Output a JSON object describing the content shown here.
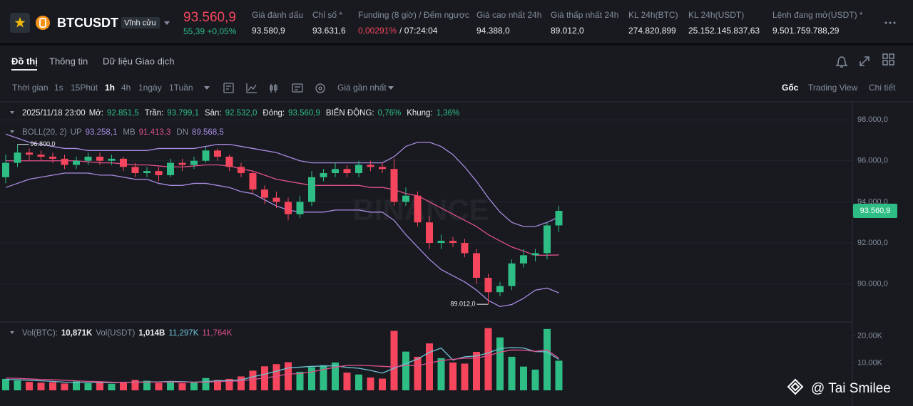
{
  "header": {
    "symbol": "BTCUSDT",
    "contract": "Vĩnh cửu",
    "price": "93.560,9",
    "change": "55,39 +0,05%",
    "stats": [
      {
        "label": "Giá đánh dấu",
        "value": "93.580,9"
      },
      {
        "label": "Chỉ số *",
        "value": "93.631,6"
      },
      {
        "label": "Funding (8 giờ) / Đếm ngược",
        "value": "0,00291%",
        "extra": "/ 07:24:04"
      },
      {
        "label": "Giá cao nhất 24h",
        "value": "94.388,0"
      },
      {
        "label": "Giá thấp nhất 24h",
        "value": "89.012,0"
      },
      {
        "label": "KL 24h(BTC)",
        "value": "274.820,899"
      },
      {
        "label": "KL 24h(USDT)",
        "value": "25.152.145.837,63"
      },
      {
        "label": "Lệnh đang mở(USDT) *",
        "value": "9.501.759.788,29"
      }
    ]
  },
  "tabs": [
    "Đồ thị",
    "Thông tin",
    "Dữ liệu Giao dịch"
  ],
  "toolbar": {
    "intervals": [
      "Thời gian",
      "1s",
      "15Phút",
      "1h",
      "4h",
      "1ngày",
      "1Tuần"
    ],
    "price_type": "Giá gần nhất",
    "views": [
      "Gốc",
      "Trading View",
      "Chi tiết"
    ]
  },
  "watermark": "BINANCE",
  "credit": "@ Tai Smilee",
  "chart_data": [
    {
      "type": "candlestick",
      "info": {
        "time": "2025/11/18 23:00",
        "items": [
          {
            "label": "Mở:",
            "value": "92.851,5"
          },
          {
            "label": "Trần:",
            "value": "93.799,1"
          },
          {
            "label": "Sàn:",
            "value": "92.532,0"
          },
          {
            "label": "Đóng:",
            "value": "93.560,9"
          },
          {
            "label": "BIẾN ĐỘNG:",
            "value": "0,76%"
          },
          {
            "label": "Khung:",
            "value": "1,36%"
          }
        ]
      },
      "indicator": "BOLL(20, 2)",
      "up_color": "#2ebd85",
      "down_color": "#f6465d",
      "open": [
        95200,
        95900,
        96400,
        96300,
        96200,
        96100,
        95800,
        96000,
        96200,
        96000,
        96100,
        95700,
        95400,
        95500,
        95300,
        95900,
        95800,
        96000,
        96500,
        96200,
        95700,
        95400,
        94600,
        94200,
        94000,
        93400,
        94000,
        95200,
        95400,
        95600,
        95400,
        95800,
        95700,
        95600,
        94000,
        94300,
        93000,
        92000,
        92100,
        92000,
        91500,
        90300,
        89600,
        89900,
        91000,
        91400,
        91500,
        92851.5
      ],
      "high": [
        96300,
        96800,
        96600,
        96500,
        96400,
        96300,
        96200,
        96400,
        96400,
        96300,
        96200,
        95900,
        95700,
        95700,
        96100,
        96100,
        96200,
        96700,
        96600,
        96300,
        95900,
        95500,
        94800,
        94500,
        94200,
        94300,
        95500,
        95600,
        95900,
        95800,
        96000,
        96000,
        95900,
        96100,
        94700,
        94500,
        93300,
        92400,
        92300,
        92200,
        91700,
        90500,
        90100,
        91200,
        91700,
        91700,
        93000,
        93799.1
      ],
      "low": [
        94900,
        95700,
        96000,
        96000,
        95900,
        95600,
        95600,
        95800,
        95800,
        95800,
        95500,
        95200,
        95200,
        95000,
        95200,
        95500,
        95600,
        95900,
        96000,
        95500,
        95200,
        94400,
        93900,
        93700,
        93100,
        93200,
        93800,
        95000,
        95200,
        95200,
        95200,
        95500,
        95400,
        93800,
        93800,
        92800,
        91700,
        91700,
        91800,
        91300,
        90000,
        89012,
        89400,
        89700,
        90800,
        91100,
        91200,
        92532
      ],
      "close": [
        95900,
        96400,
        96300,
        96200,
        96100,
        95800,
        96000,
        96200,
        96000,
        96100,
        95700,
        95400,
        95500,
        95300,
        95900,
        95800,
        96000,
        96500,
        96200,
        95700,
        95400,
        94600,
        94200,
        94000,
        93400,
        94000,
        95200,
        95400,
        95600,
        95400,
        95800,
        95700,
        95600,
        94000,
        94300,
        93000,
        92000,
        92100,
        92000,
        91500,
        90300,
        89600,
        89900,
        91000,
        91400,
        91500,
        92851.5,
        93560.9
      ],
      "series": [
        {
          "name": "UP",
          "color": "#a88be0",
          "legend_value": "93.258,1",
          "values": [
            97300,
            97100,
            96900,
            96800,
            96700,
            96600,
            96600,
            96500,
            96500,
            96500,
            96500,
            96500,
            96500,
            96600,
            96600,
            96600,
            96600,
            96700,
            96800,
            96800,
            96700,
            96600,
            96500,
            96400,
            96200,
            96000,
            95900,
            95900,
            95900,
            95900,
            95900,
            95900,
            95900,
            96200,
            96700,
            96900,
            96900,
            96700,
            96300,
            95700,
            95000,
            94200,
            93500,
            93000,
            92800,
            92800,
            93000,
            93258.1
          ]
        },
        {
          "name": "MB",
          "color": "#e0508c",
          "legend_value": "91.413,3",
          "values": [
            96000,
            96000,
            96000,
            96000,
            96000,
            96000,
            96000,
            95950,
            95900,
            95900,
            95850,
            95800,
            95800,
            95750,
            95700,
            95700,
            95750,
            95800,
            95800,
            95750,
            95600,
            95500,
            95300,
            95100,
            95000,
            94900,
            94800,
            94800,
            94800,
            94800,
            94800,
            94700,
            94700,
            94600,
            94400,
            94300,
            94000,
            93700,
            93400,
            93100,
            92800,
            92400,
            92100,
            91800,
            91600,
            91400,
            91400,
            91413.3
          ]
        },
        {
          "name": "DN",
          "color": "#a88be0",
          "legend_value": "89.568,5",
          "values": [
            94700,
            94900,
            95100,
            95200,
            95300,
            95400,
            95400,
            95400,
            95300,
            95300,
            95200,
            95100,
            95100,
            94900,
            94800,
            94800,
            94900,
            94900,
            94800,
            94700,
            94500,
            94400,
            94100,
            93800,
            93600,
            93500,
            93500,
            93500,
            93600,
            93600,
            93600,
            93500,
            93500,
            93100,
            92400,
            91800,
            91200,
            90700,
            90400,
            90100,
            89700,
            89200,
            88900,
            89000,
            89300,
            89700,
            89800,
            89568.5
          ]
        }
      ],
      "annotations": [
        {
          "value": 96800,
          "label": "96.800,0"
        },
        {
          "value": 89012,
          "label": "89.012,0"
        }
      ],
      "last_price": {
        "value": 93560.9,
        "label": "93.560,9"
      },
      "ylim": [
        88150,
        98870
      ],
      "yticks": [
        {
          "value": 90000,
          "label": "90.000,0"
        },
        {
          "value": 92000,
          "label": "92.000,0"
        },
        {
          "value": 94000,
          "label": "94.000,0"
        },
        {
          "value": 96000,
          "label": "96.000,0"
        },
        {
          "value": 98000,
          "label": "98.000,0"
        }
      ],
      "grid": true
    },
    {
      "type": "bar",
      "legend": [
        {
          "label": "Vol(BTC):",
          "value": "10,871K"
        },
        {
          "label": "Vol(USDT)",
          "value": "1,014B"
        }
      ],
      "values": [
        4200,
        3600,
        3100,
        2800,
        3000,
        2500,
        3300,
        2600,
        2900,
        2400,
        3100,
        3800,
        3500,
        2700,
        3400,
        2600,
        3000,
        4500,
        3800,
        4200,
        5100,
        7200,
        8800,
        9600,
        10300,
        6800,
        8500,
        9200,
        10200,
        6500,
        5800,
        4700,
        4300,
        21800,
        14200,
        12300,
        17200,
        11800,
        10200,
        9800,
        14100,
        22800,
        19400,
        12300,
        8700,
        7600,
        22500,
        10871
      ],
      "series": [
        {
          "color": "#6fc3d6",
          "legend_value": "11,297K",
          "values": [
            4000,
            3900,
            3700,
            3500,
            3300,
            3000,
            2900,
            2900,
            2900,
            2800,
            2900,
            3000,
            3100,
            3100,
            3300,
            3200,
            3000,
            3200,
            3500,
            3600,
            3800,
            5000,
            5900,
            7000,
            8200,
            8500,
            8800,
            8900,
            9000,
            8400,
            8100,
            7300,
            6300,
            8100,
            9800,
            11500,
            13900,
            15500,
            11100,
            12300,
            12600,
            13700,
            15300,
            15700,
            15500,
            14200,
            14100,
            11297
          ]
        },
        {
          "color": "#e0508c",
          "legend_value": "11,764K",
          "values": [
            4500,
            4400,
            4200,
            4000,
            3900,
            3700,
            3500,
            3300,
            3200,
            3000,
            2900,
            2900,
            3000,
            3000,
            3100,
            3000,
            3000,
            3000,
            3200,
            3300,
            3500,
            4000,
            4500,
            5200,
            6000,
            6100,
            6800,
            7600,
            8500,
            9100,
            9200,
            9000,
            8800,
            8600,
            9100,
            9000,
            10000,
            10900,
            11400,
            11800,
            11800,
            12700,
            14000,
            14800,
            14700,
            14300,
            14800,
            11764
          ]
        }
      ],
      "ylim": [
        0,
        23500
      ],
      "yticks": [
        {
          "value": 10000,
          "label": "10,00K"
        },
        {
          "value": 20000,
          "label": "20,00K"
        }
      ]
    }
  ]
}
